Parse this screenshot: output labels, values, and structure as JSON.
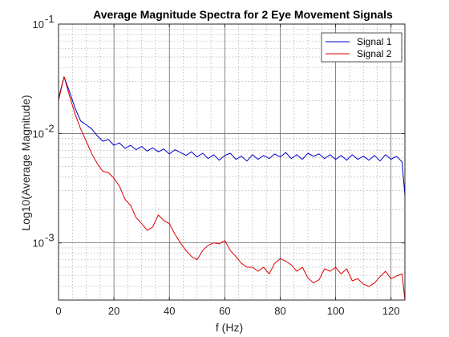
{
  "chart_data": {
    "type": "line",
    "title": "Average Magnitude Spectra for 2 Eye Movement Signals",
    "xlabel": "f (Hz)",
    "ylabel": "Log10(Average Magnitude)",
    "xlim": [
      0,
      125
    ],
    "ylim": [
      0.0003,
      0.1
    ],
    "yscale": "log",
    "grid": true,
    "minor_grid": true,
    "legend_position": "top-right",
    "x_ticks": [
      0,
      20,
      40,
      60,
      80,
      100,
      120
    ],
    "x_tick_labels": [
      "0",
      "20",
      "40",
      "60",
      "80",
      "100",
      "120"
    ],
    "y_ticks": [
      0.1,
      0.01,
      0.001
    ],
    "y_tick_labels": [
      {
        "base": "10",
        "exp": "-1"
      },
      {
        "base": "10",
        "exp": "-2"
      },
      {
        "base": "10",
        "exp": "-3"
      }
    ],
    "x": [
      0,
      2,
      4,
      6,
      8,
      10,
      12,
      14,
      16,
      18,
      20,
      22,
      24,
      26,
      28,
      30,
      32,
      34,
      36,
      38,
      40,
      42,
      44,
      46,
      48,
      50,
      52,
      54,
      56,
      58,
      60,
      62,
      64,
      66,
      68,
      70,
      72,
      74,
      76,
      78,
      80,
      82,
      84,
      86,
      88,
      90,
      92,
      94,
      96,
      98,
      100,
      102,
      104,
      106,
      108,
      110,
      112,
      114,
      116,
      118,
      120,
      122,
      124,
      125
    ],
    "series": [
      {
        "name": "Signal 1",
        "color": "#0000cc",
        "values": [
          0.021,
          0.033,
          0.024,
          0.017,
          0.013,
          0.012,
          0.011,
          0.0095,
          0.0085,
          0.0088,
          0.0078,
          0.0082,
          0.0073,
          0.0078,
          0.0071,
          0.0076,
          0.0069,
          0.0074,
          0.0068,
          0.0072,
          0.0065,
          0.0071,
          0.0067,
          0.0063,
          0.0068,
          0.0061,
          0.0066,
          0.0059,
          0.0064,
          0.0057,
          0.0063,
          0.0066,
          0.0058,
          0.0062,
          0.0056,
          0.0064,
          0.0058,
          0.0063,
          0.0059,
          0.0065,
          0.0061,
          0.0067,
          0.0059,
          0.0064,
          0.0058,
          0.0066,
          0.0062,
          0.0065,
          0.0059,
          0.0064,
          0.0058,
          0.0063,
          0.0057,
          0.0064,
          0.0058,
          0.0062,
          0.0057,
          0.0063,
          0.0056,
          0.0064,
          0.0058,
          0.0062,
          0.0055,
          0.0027
        ]
      },
      {
        "name": "Signal 2",
        "color": "#dd0000",
        "values": [
          0.02,
          0.033,
          0.022,
          0.015,
          0.011,
          0.0085,
          0.0065,
          0.0053,
          0.0045,
          0.0044,
          0.0039,
          0.0033,
          0.0025,
          0.0022,
          0.0017,
          0.0015,
          0.0013,
          0.0014,
          0.0018,
          0.0016,
          0.0015,
          0.0012,
          0.001,
          0.00085,
          0.00075,
          0.0007,
          0.00085,
          0.00095,
          0.001,
          0.00098,
          0.00105,
          0.00085,
          0.00075,
          0.00065,
          0.0006,
          0.0006,
          0.00055,
          0.0006,
          0.00052,
          0.00065,
          0.00072,
          0.00068,
          0.00063,
          0.00055,
          0.0006,
          0.00048,
          0.00043,
          0.00046,
          0.00058,
          0.00055,
          0.0006,
          0.00052,
          0.00058,
          0.00045,
          0.00047,
          0.00042,
          0.0004,
          0.00043,
          0.00049,
          0.00055,
          0.00047,
          0.0005,
          0.00052,
          0.0003
        ]
      }
    ]
  }
}
